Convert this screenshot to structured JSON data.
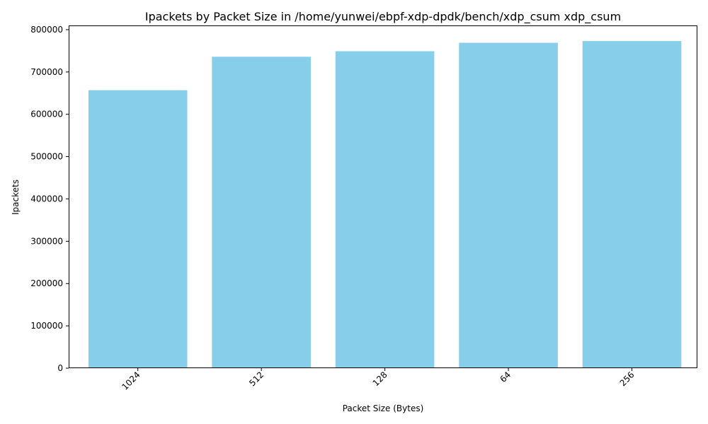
{
  "chart_data": {
    "type": "bar",
    "title": "Ipackets by Packet Size in /home/yunwei/ebpf-xdp-dpdk/bench/xdp_csum xdp_csum",
    "xlabel": "Packet Size (Bytes)",
    "ylabel": "Ipackets",
    "categories": [
      "1024",
      "512",
      "128",
      "64",
      "256"
    ],
    "values": [
      657000,
      736000,
      749000,
      769000,
      773000
    ],
    "ylim": [
      0,
      810000
    ],
    "yticks": [
      0,
      100000,
      200000,
      300000,
      400000,
      500000,
      600000,
      700000,
      800000
    ],
    "ytick_labels": [
      "0",
      "100000",
      "200000",
      "300000",
      "400000",
      "500000",
      "600000",
      "700000",
      "800000"
    ],
    "xtick_rotation": 45,
    "bar_color": "#87CEEB",
    "grid": false,
    "legend": "none"
  }
}
